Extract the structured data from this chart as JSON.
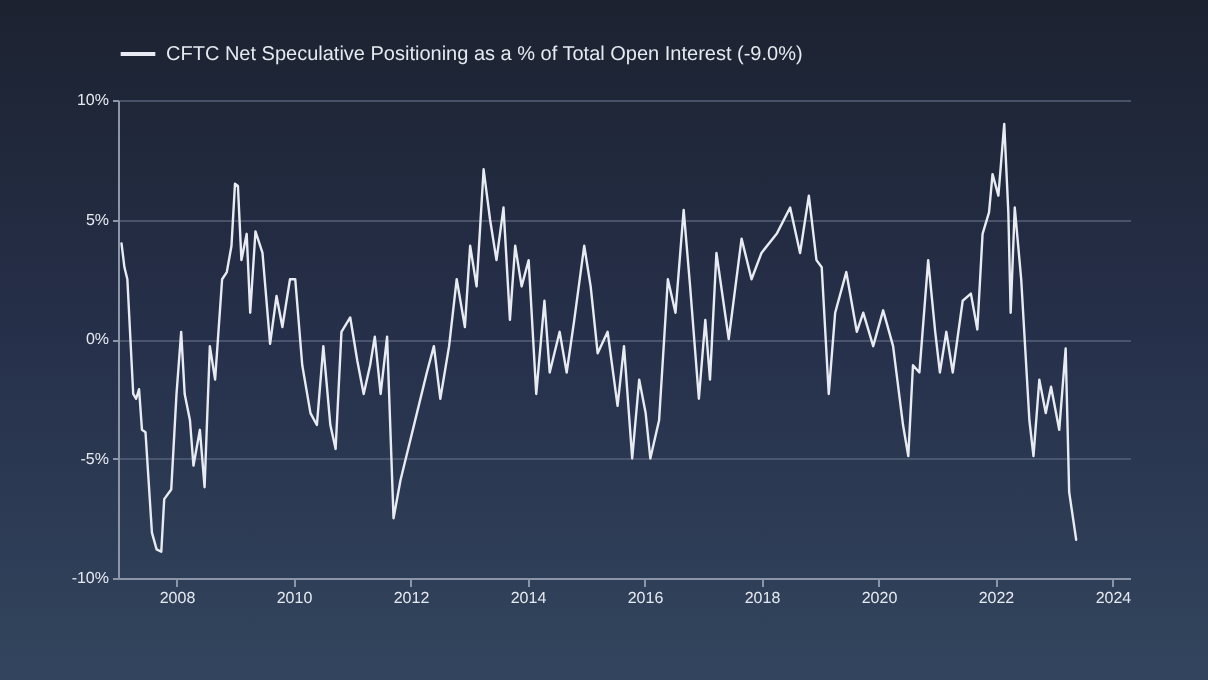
{
  "chart_data": {
    "type": "line",
    "x": [
      2007.06,
      2007.11,
      2007.16,
      2007.26,
      2007.31,
      2007.36,
      2007.41,
      2007.47,
      2007.58,
      2007.66,
      2007.74,
      2007.79,
      2007.91,
      2008.0,
      2008.08,
      2008.14,
      2008.23,
      2008.29,
      2008.4,
      2008.48,
      2008.57,
      2008.66,
      2008.78,
      2008.86,
      2008.94,
      2009.0,
      2009.05,
      2009.11,
      2009.2,
      2009.26,
      2009.35,
      2009.47,
      2009.6,
      2009.71,
      2009.81,
      2009.94,
      2010.03,
      2010.15,
      2010.29,
      2010.4,
      2010.51,
      2010.63,
      2010.72,
      2010.82,
      2010.97,
      2011.09,
      2011.2,
      2011.31,
      2011.39,
      2011.49,
      2011.6,
      2011.71,
      2011.83,
      2011.94,
      2012.11,
      2012.28,
      2012.4,
      2012.51,
      2012.66,
      2012.79,
      2012.93,
      2013.02,
      2013.13,
      2013.25,
      2013.36,
      2013.47,
      2013.59,
      2013.7,
      2013.79,
      2013.9,
      2014.02,
      2014.15,
      2014.29,
      2014.38,
      2014.55,
      2014.67,
      2014.8,
      2014.97,
      2015.08,
      2015.2,
      2015.37,
      2015.54,
      2015.65,
      2015.79,
      2015.91,
      2016.02,
      2016.1,
      2016.25,
      2016.4,
      2016.53,
      2016.67,
      2016.78,
      2016.93,
      2017.04,
      2017.12,
      2017.23,
      2017.44,
      2017.66,
      2017.83,
      2018.0,
      2018.26,
      2018.49,
      2018.66,
      2018.81,
      2018.94,
      2019.03,
      2019.15,
      2019.26,
      2019.45,
      2019.63,
      2019.74,
      2019.91,
      2020.08,
      2020.25,
      2020.42,
      2020.51,
      2020.59,
      2020.7,
      2020.85,
      2020.97,
      2021.05,
      2021.16,
      2021.27,
      2021.44,
      2021.58,
      2021.69,
      2021.78,
      2021.89,
      2021.95,
      2022.05,
      2022.15,
      2022.22,
      2022.26,
      2022.33,
      2022.44,
      2022.58,
      2022.65,
      2022.75,
      2022.86,
      2022.95,
      2023.09,
      2023.2,
      2023.26,
      2023.38
    ],
    "series": [
      {
        "name": "CFTC Net Speculative Positioning as a % of Total Open Interest (-9.0%)",
        "color": "#e8ecf2",
        "values": [
          4.0,
          3.0,
          2.5,
          -2.3,
          -2.5,
          -2.1,
          -3.8,
          -3.9,
          -8.1,
          -8.8,
          -8.9,
          -6.7,
          -6.3,
          -2.3,
          0.3,
          -2.3,
          -3.4,
          -5.3,
          -3.8,
          -6.2,
          -0.3,
          -1.7,
          2.5,
          2.8,
          3.9,
          6.5,
          6.4,
          3.3,
          4.4,
          1.1,
          4.5,
          3.6,
          -0.2,
          1.8,
          0.5,
          2.5,
          2.5,
          -1.1,
          -3.1,
          -3.6,
          -0.3,
          -3.6,
          -4.6,
          0.3,
          0.9,
          -0.9,
          -2.3,
          -1.1,
          0.1,
          -2.3,
          0.1,
          -7.5,
          -5.9,
          -4.8,
          -3.1,
          -1.4,
          -0.3,
          -2.5,
          -0.3,
          2.5,
          0.5,
          3.9,
          2.2,
          7.1,
          5.0,
          3.3,
          5.5,
          0.8,
          3.9,
          2.2,
          3.3,
          -2.3,
          1.6,
          -1.4,
          0.3,
          -1.4,
          0.8,
          3.9,
          2.2,
          -0.6,
          0.3,
          -2.8,
          -0.3,
          -5.0,
          -1.7,
          -3.1,
          -5.0,
          -3.4,
          2.5,
          1.1,
          5.4,
          2.2,
          -2.5,
          0.8,
          -1.7,
          3.6,
          0.0,
          4.2,
          2.5,
          3.6,
          4.4,
          5.5,
          3.6,
          6.0,
          3.3,
          3.0,
          -2.3,
          1.1,
          2.8,
          0.3,
          1.1,
          -0.3,
          1.2,
          -0.3,
          -3.6,
          -4.9,
          -1.1,
          -1.4,
          3.3,
          0.3,
          -1.4,
          0.3,
          -1.4,
          1.6,
          1.9,
          0.4,
          4.4,
          5.3,
          6.9,
          6.0,
          9.0,
          5.3,
          1.1,
          5.5,
          2.5,
          -3.4,
          -4.9,
          -1.7,
          -3.1,
          -2.0,
          -3.8,
          -0.4,
          -6.4,
          -8.4
        ]
      }
    ],
    "xlim": [
      2007.0,
      2024.3
    ],
    "xticks": [
      2008,
      2010,
      2012,
      2014,
      2016,
      2018,
      2020,
      2022,
      2024
    ],
    "ylim": [
      -10,
      10
    ],
    "yticks": [
      {
        "value": -10,
        "label": "-10%"
      },
      {
        "value": -5,
        "label": "-5%"
      },
      {
        "value": 0,
        "label": "0%"
      },
      {
        "value": 5,
        "label": "5%"
      },
      {
        "value": 10,
        "label": "10%"
      }
    ],
    "grid": "y",
    "legend": "top",
    "marker": "none",
    "line_style": "solid"
  }
}
